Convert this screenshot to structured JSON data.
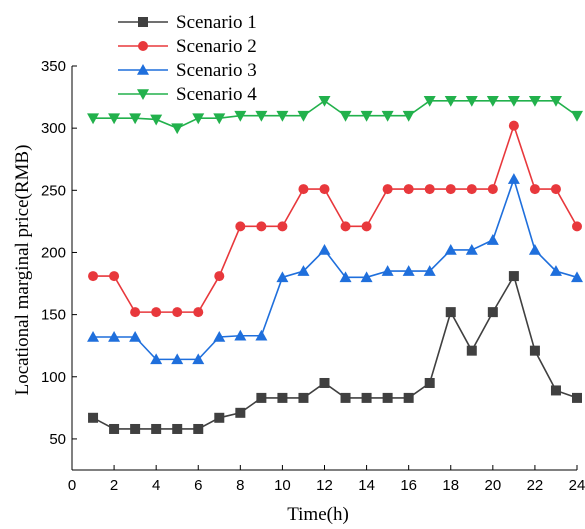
{
  "chart_data": {
    "type": "line",
    "xlabel": "Time(h)",
    "ylabel": "Locational marginal price(RMB)",
    "xlim": [
      0,
      24
    ],
    "ylim": [
      25,
      350
    ],
    "xticks": [
      0,
      2,
      4,
      6,
      8,
      10,
      12,
      14,
      16,
      18,
      20,
      22,
      24
    ],
    "yticks": [
      50,
      100,
      150,
      200,
      250,
      300,
      350
    ],
    "x": [
      1,
      2,
      3,
      4,
      5,
      6,
      7,
      8,
      9,
      10,
      11,
      12,
      13,
      14,
      15,
      16,
      17,
      18,
      19,
      20,
      21,
      22,
      23,
      24
    ],
    "legend_position": "top-left",
    "grid": false,
    "series": [
      {
        "name": "Scenario 1",
        "color": "#404040",
        "marker": "square",
        "values": [
          67,
          58,
          58,
          58,
          58,
          58,
          67,
          71,
          83,
          83,
          83,
          95,
          83,
          83,
          83,
          83,
          95,
          152,
          121,
          152,
          181,
          121,
          89,
          83
        ]
      },
      {
        "name": "Scenario 2",
        "color": "#e8383c",
        "marker": "circle",
        "values": [
          181,
          181,
          152,
          152,
          152,
          152,
          181,
          221,
          221,
          221,
          251,
          251,
          221,
          221,
          251,
          251,
          251,
          251,
          251,
          251,
          302,
          251,
          251,
          221
        ]
      },
      {
        "name": "Scenario 3",
        "color": "#1f6fdc",
        "marker": "triangle-up",
        "values": [
          132,
          132,
          132,
          114,
          114,
          114,
          132,
          133,
          133,
          180,
          185,
          202,
          180,
          180,
          185,
          185,
          185,
          202,
          202,
          210,
          259,
          202,
          185,
          180
        ]
      },
      {
        "name": "Scenario 4",
        "color": "#22b14c",
        "marker": "triangle-down",
        "values": [
          308,
          308,
          308,
          307,
          300,
          308,
          308,
          310,
          310,
          310,
          310,
          322,
          310,
          310,
          310,
          310,
          322,
          322,
          322,
          322,
          322,
          322,
          322,
          310
        ]
      }
    ]
  }
}
